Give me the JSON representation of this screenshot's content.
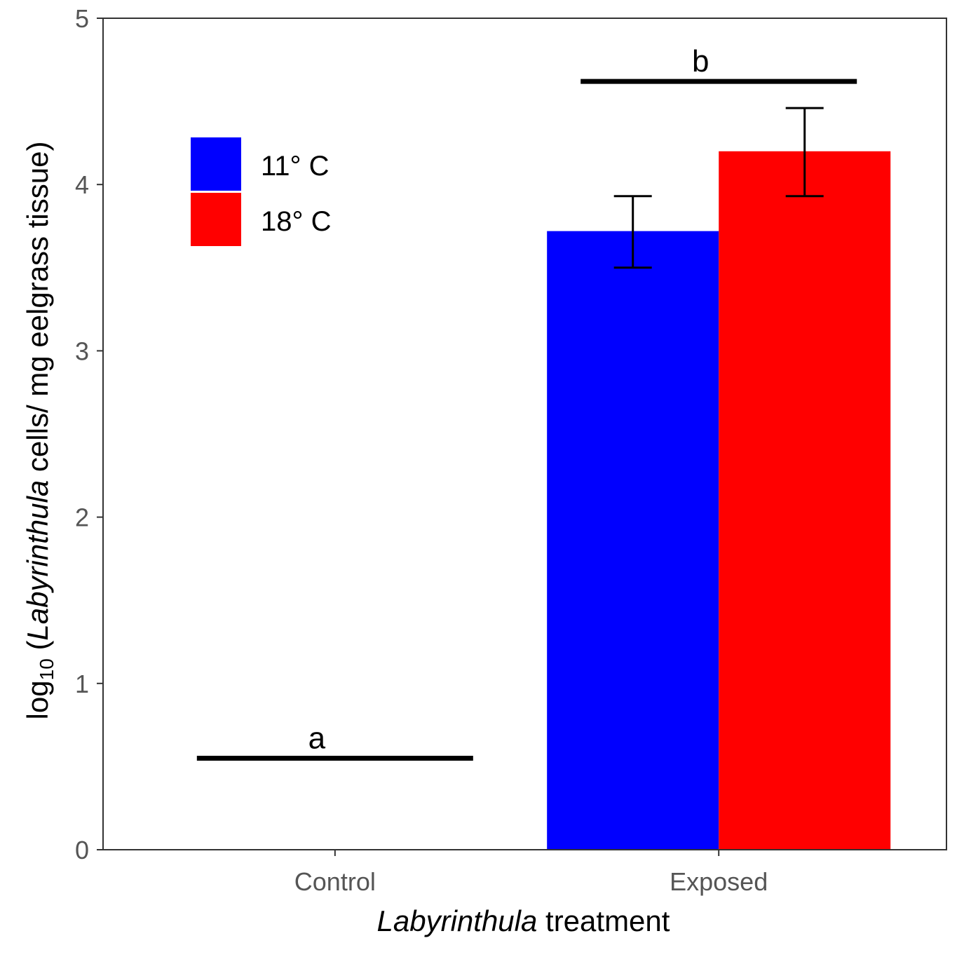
{
  "chart_data": {
    "type": "bar",
    "categories": [
      "Control",
      "Exposed"
    ],
    "series": [
      {
        "name": "11° C",
        "color": "#0000ff",
        "values": [
          0,
          3.72
        ],
        "error_low": [
          null,
          3.5
        ],
        "error_high": [
          null,
          3.93
        ]
      },
      {
        "name": "18° C",
        "color": "#ff0000",
        "values": [
          0,
          4.2
        ],
        "error_low": [
          null,
          3.93
        ],
        "error_high": [
          null,
          4.46
        ]
      }
    ],
    "ylim": [
      0,
      5
    ],
    "yticks": [
      "0",
      "1",
      "2",
      "3",
      "4",
      "5"
    ],
    "xlabel": {
      "italic": "Labyrinthula",
      "rest": " treatment"
    },
    "ylabel": {
      "prefix": "log",
      "sub": "10",
      "open": " (",
      "italic": "Labyrinthula",
      "rest": " cells/ mg eelgrass tissue)"
    },
    "legend_position": "top-left",
    "grid": false,
    "annotations": [
      {
        "text": "a",
        "category": "Control",
        "y": 0.55
      },
      {
        "text": "b",
        "category": "Exposed",
        "y": 4.62
      }
    ]
  }
}
